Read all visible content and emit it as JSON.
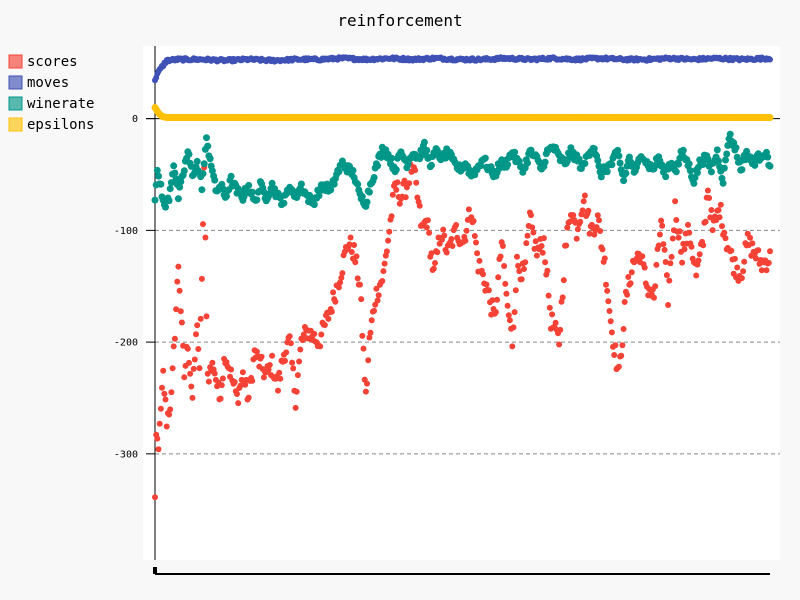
{
  "chart_data": {
    "type": "scatter",
    "title": "reinforcement",
    "xlabel": "",
    "ylabel": "",
    "ylim": [
      -395,
      65
    ],
    "y_ticks": [
      0,
      -100,
      -200,
      -300
    ],
    "grid": "horizontal dashed",
    "legend_position": "top-left",
    "series": [
      {
        "name": "scores",
        "color": "#f44336",
        "keypoints": [
          [
            0,
            -330
          ],
          [
            2,
            -300
          ],
          [
            4,
            -280
          ],
          [
            7,
            -230
          ],
          [
            10,
            -270
          ],
          [
            14,
            -250
          ],
          [
            20,
            -130
          ],
          [
            25,
            -230
          ],
          [
            28,
            -200
          ],
          [
            32,
            -250
          ],
          [
            36,
            -180
          ],
          [
            38,
            -230
          ],
          [
            42,
            -50
          ],
          [
            45,
            -230
          ],
          [
            50,
            -220
          ],
          [
            55,
            -250
          ],
          [
            60,
            -210
          ],
          [
            65,
            -230
          ],
          [
            70,
            -250
          ],
          [
            75,
            -230
          ],
          [
            80,
            -250
          ],
          [
            85,
            -210
          ],
          [
            90,
            -220
          ],
          [
            95,
            -230
          ],
          [
            100,
            -220
          ],
          [
            105,
            -240
          ],
          [
            110,
            -210
          ],
          [
            115,
            -200
          ],
          [
            120,
            -250
          ],
          [
            125,
            -200
          ],
          [
            130,
            -190
          ],
          [
            140,
            -200
          ],
          [
            150,
            -170
          ],
          [
            158,
            -140
          ],
          [
            165,
            -110
          ],
          [
            170,
            -120
          ],
          [
            175,
            -150
          ],
          [
            180,
            -250
          ],
          [
            183,
            -200
          ],
          [
            188,
            -160
          ],
          [
            195,
            -140
          ],
          [
            200,
            -100
          ],
          [
            205,
            -60
          ],
          [
            210,
            -70
          ],
          [
            215,
            -60
          ],
          [
            220,
            -40
          ],
          [
            228,
            -100
          ],
          [
            232,
            -90
          ],
          [
            238,
            -140
          ],
          [
            244,
            -100
          ],
          [
            250,
            -120
          ],
          [
            257,
            -100
          ],
          [
            263,
            -110
          ],
          [
            270,
            -80
          ],
          [
            276,
            -130
          ],
          [
            283,
            -150
          ],
          [
            290,
            -180
          ],
          [
            296,
            -110
          ],
          [
            300,
            -160
          ],
          [
            305,
            -200
          ],
          [
            309,
            -130
          ],
          [
            315,
            -140
          ],
          [
            320,
            -90
          ],
          [
            326,
            -120
          ],
          [
            332,
            -110
          ],
          [
            338,
            -180
          ],
          [
            345,
            -200
          ],
          [
            350,
            -120
          ],
          [
            355,
            -80
          ],
          [
            360,
            -100
          ],
          [
            366,
            -70
          ],
          [
            372,
            -100
          ],
          [
            378,
            -90
          ],
          [
            384,
            -130
          ],
          [
            390,
            -190
          ],
          [
            396,
            -230
          ],
          [
            402,
            -160
          ],
          [
            408,
            -130
          ],
          [
            414,
            -120
          ],
          [
            420,
            -150
          ],
          [
            426,
            -160
          ],
          [
            432,
            -90
          ],
          [
            438,
            -160
          ],
          [
            444,
            -80
          ],
          [
            450,
            -120
          ],
          [
            456,
            -100
          ],
          [
            462,
            -140
          ],
          [
            468,
            -110
          ],
          [
            472,
            -60
          ],
          [
            476,
            -100
          ],
          [
            482,
            -80
          ],
          [
            488,
            -110
          ],
          [
            494,
            -130
          ],
          [
            500,
            -140
          ],
          [
            506,
            -110
          ],
          [
            512,
            -120
          ],
          [
            518,
            -130
          ],
          [
            525,
            -125
          ]
        ]
      },
      {
        "name": "moves",
        "color": "#3f51b5",
        "keypoints": [
          [
            0,
            35
          ],
          [
            2,
            40
          ],
          [
            5,
            45
          ],
          [
            10,
            52
          ],
          [
            20,
            53
          ],
          [
            40,
            53
          ],
          [
            60,
            52
          ],
          [
            80,
            53
          ],
          [
            100,
            52
          ],
          [
            120,
            53
          ],
          [
            140,
            53
          ],
          [
            160,
            54
          ],
          [
            180,
            53
          ],
          [
            200,
            54
          ],
          [
            220,
            53
          ],
          [
            240,
            54
          ],
          [
            260,
            53
          ],
          [
            280,
            53
          ],
          [
            300,
            54
          ],
          [
            320,
            53
          ],
          [
            340,
            54
          ],
          [
            360,
            53
          ],
          [
            380,
            54
          ],
          [
            400,
            53
          ],
          [
            420,
            53
          ],
          [
            440,
            54
          ],
          [
            460,
            53
          ],
          [
            480,
            54
          ],
          [
            500,
            53
          ],
          [
            525,
            54
          ]
        ]
      },
      {
        "name": "winerate",
        "color": "#009688",
        "keypoints": [
          [
            0,
            -70
          ],
          [
            2,
            -50
          ],
          [
            5,
            -60
          ],
          [
            8,
            -80
          ],
          [
            12,
            -70
          ],
          [
            16,
            -40
          ],
          [
            20,
            -70
          ],
          [
            24,
            -50
          ],
          [
            28,
            -30
          ],
          [
            32,
            -50
          ],
          [
            36,
            -40
          ],
          [
            40,
            -60
          ],
          [
            44,
            -20
          ],
          [
            48,
            -40
          ],
          [
            52,
            -65
          ],
          [
            56,
            -60
          ],
          [
            60,
            -70
          ],
          [
            65,
            -55
          ],
          [
            70,
            -65
          ],
          [
            75,
            -70
          ],
          [
            80,
            -60
          ],
          [
            85,
            -75
          ],
          [
            90,
            -60
          ],
          [
            95,
            -70
          ],
          [
            100,
            -60
          ],
          [
            105,
            -70
          ],
          [
            110,
            -75
          ],
          [
            115,
            -60
          ],
          [
            120,
            -70
          ],
          [
            125,
            -60
          ],
          [
            130,
            -70
          ],
          [
            135,
            -75
          ],
          [
            140,
            -65
          ],
          [
            145,
            -60
          ],
          [
            150,
            -65
          ],
          [
            155,
            -50
          ],
          [
            160,
            -40
          ],
          [
            165,
            -45
          ],
          [
            170,
            -50
          ],
          [
            175,
            -70
          ],
          [
            180,
            -75
          ],
          [
            185,
            -55
          ],
          [
            190,
            -40
          ],
          [
            195,
            -25
          ],
          [
            200,
            -35
          ],
          [
            205,
            -45
          ],
          [
            210,
            -30
          ],
          [
            215,
            -40
          ],
          [
            220,
            -30
          ],
          [
            225,
            -35
          ],
          [
            230,
            -25
          ],
          [
            235,
            -40
          ],
          [
            240,
            -30
          ],
          [
            245,
            -35
          ],
          [
            250,
            -30
          ],
          [
            255,
            -40
          ],
          [
            260,
            -45
          ],
          [
            265,
            -40
          ],
          [
            270,
            -50
          ],
          [
            275,
            -45
          ],
          [
            280,
            -35
          ],
          [
            285,
            -45
          ],
          [
            290,
            -50
          ],
          [
            295,
            -40
          ],
          [
            300,
            -40
          ],
          [
            305,
            -30
          ],
          [
            310,
            -40
          ],
          [
            315,
            -45
          ],
          [
            320,
            -30
          ],
          [
            325,
            -35
          ],
          [
            330,
            -45
          ],
          [
            335,
            -30
          ],
          [
            340,
            -25
          ],
          [
            345,
            -35
          ],
          [
            350,
            -40
          ],
          [
            355,
            -30
          ],
          [
            360,
            -35
          ],
          [
            365,
            -45
          ],
          [
            370,
            -30
          ],
          [
            375,
            -25
          ],
          [
            380,
            -50
          ],
          [
            385,
            -45
          ],
          [
            390,
            -40
          ],
          [
            395,
            -30
          ],
          [
            400,
            -55
          ],
          [
            405,
            -35
          ],
          [
            410,
            -50
          ],
          [
            415,
            -30
          ],
          [
            420,
            -40
          ],
          [
            425,
            -45
          ],
          [
            430,
            -35
          ],
          [
            435,
            -50
          ],
          [
            440,
            -40
          ],
          [
            445,
            -45
          ],
          [
            450,
            -30
          ],
          [
            455,
            -40
          ],
          [
            460,
            -55
          ],
          [
            465,
            -40
          ],
          [
            470,
            -35
          ],
          [
            475,
            -45
          ],
          [
            480,
            -30
          ],
          [
            485,
            -55
          ],
          [
            490,
            -15
          ],
          [
            495,
            -25
          ],
          [
            500,
            -45
          ],
          [
            505,
            -30
          ],
          [
            510,
            -40
          ],
          [
            515,
            -35
          ],
          [
            520,
            -30
          ],
          [
            525,
            -40
          ]
        ]
      },
      {
        "name": "epsilons",
        "color": "#ffc107",
        "keypoints": [
          [
            0,
            10
          ],
          [
            3,
            5
          ],
          [
            6,
            2
          ],
          [
            10,
            1
          ],
          [
            30,
            1
          ],
          [
            100,
            1
          ],
          [
            200,
            1
          ],
          [
            300,
            1
          ],
          [
            400,
            1
          ],
          [
            525,
            1
          ]
        ]
      }
    ],
    "x_range": [
      0,
      525
    ]
  }
}
